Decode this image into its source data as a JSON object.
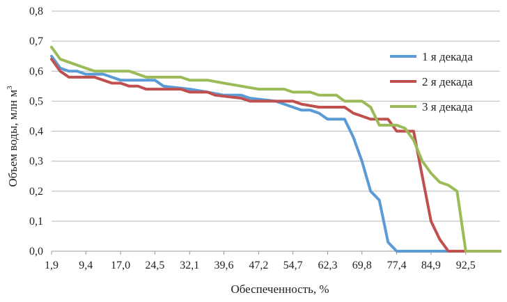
{
  "chart_data": {
    "type": "line",
    "title": "",
    "xlabel": "Обеспеченность, %",
    "ylabel": "Объем воды, млн м",
    "ylabel_superscript": "3",
    "ylim": [
      0,
      0.8
    ],
    "yticks": [
      "0,0",
      "0,1",
      "0,2",
      "0,3",
      "0,4",
      "0,5",
      "0,6",
      "0,7",
      "0,8"
    ],
    "xlim": [
      1.9,
      100
    ],
    "xticks": [
      {
        "value": 1.9,
        "label": "1,9"
      },
      {
        "value": 9.4,
        "label": "9,4"
      },
      {
        "value": 17.0,
        "label": "17,0"
      },
      {
        "value": 24.5,
        "label": "24,5"
      },
      {
        "value": 32.1,
        "label": "32,1"
      },
      {
        "value": 39.6,
        "label": "39,6"
      },
      {
        "value": 47.2,
        "label": "47,2"
      },
      {
        "value": 54.7,
        "label": "54,7"
      },
      {
        "value": 62.3,
        "label": "62,3"
      },
      {
        "value": 69.8,
        "label": "69,8"
      },
      {
        "value": 77.4,
        "label": "77,4"
      },
      {
        "value": 84.9,
        "label": "84,9"
      },
      {
        "value": 92.5,
        "label": "92,5"
      }
    ],
    "grid": true,
    "legend_position": "right",
    "series": [
      {
        "name": "1 я декада",
        "color": "#5b9bd5",
        "points": [
          [
            1.9,
            0.65
          ],
          [
            3.8,
            0.61
          ],
          [
            5.7,
            0.6
          ],
          [
            7.5,
            0.6
          ],
          [
            9.4,
            0.59
          ],
          [
            13.2,
            0.59
          ],
          [
            15.1,
            0.58
          ],
          [
            17.0,
            0.57
          ],
          [
            24.5,
            0.57
          ],
          [
            26.4,
            0.55
          ],
          [
            32.1,
            0.54
          ],
          [
            36.0,
            0.53
          ],
          [
            39.6,
            0.52
          ],
          [
            43.4,
            0.52
          ],
          [
            45.3,
            0.51
          ],
          [
            50.9,
            0.5
          ],
          [
            54.7,
            0.48
          ],
          [
            56.6,
            0.47
          ],
          [
            58.5,
            0.47
          ],
          [
            60.4,
            0.46
          ],
          [
            62.3,
            0.44
          ],
          [
            66.0,
            0.44
          ],
          [
            67.9,
            0.38
          ],
          [
            69.8,
            0.3
          ],
          [
            71.7,
            0.2
          ],
          [
            73.6,
            0.17
          ],
          [
            75.5,
            0.03
          ],
          [
            77.4,
            0.0
          ],
          [
            100,
            0.0
          ]
        ]
      },
      {
        "name": "2 я декада",
        "color": "#c0504d",
        "points": [
          [
            1.9,
            0.64
          ],
          [
            3.8,
            0.6
          ],
          [
            5.7,
            0.58
          ],
          [
            9.4,
            0.58
          ],
          [
            11.3,
            0.58
          ],
          [
            13.2,
            0.57
          ],
          [
            15.1,
            0.56
          ],
          [
            17.0,
            0.56
          ],
          [
            18.9,
            0.55
          ],
          [
            20.8,
            0.55
          ],
          [
            22.6,
            0.54
          ],
          [
            30.2,
            0.54
          ],
          [
            32.1,
            0.53
          ],
          [
            36.0,
            0.53
          ],
          [
            37.7,
            0.52
          ],
          [
            43.4,
            0.51
          ],
          [
            45.3,
            0.5
          ],
          [
            54.7,
            0.5
          ],
          [
            56.6,
            0.49
          ],
          [
            60.4,
            0.48
          ],
          [
            66.0,
            0.48
          ],
          [
            67.9,
            0.46
          ],
          [
            69.8,
            0.45
          ],
          [
            71.7,
            0.44
          ],
          [
            75.5,
            0.44
          ],
          [
            77.4,
            0.4
          ],
          [
            79.2,
            0.4
          ],
          [
            81.1,
            0.4
          ],
          [
            82.1,
            0.32
          ],
          [
            84.9,
            0.1
          ],
          [
            86.8,
            0.04
          ],
          [
            88.7,
            0.0
          ],
          [
            100,
            0.0
          ]
        ]
      },
      {
        "name": "3 я декада",
        "color": "#9bbb59",
        "points": [
          [
            1.9,
            0.68
          ],
          [
            3.8,
            0.64
          ],
          [
            5.7,
            0.63
          ],
          [
            7.5,
            0.62
          ],
          [
            9.4,
            0.61
          ],
          [
            11.3,
            0.6
          ],
          [
            18.9,
            0.6
          ],
          [
            22.6,
            0.58
          ],
          [
            30.2,
            0.58
          ],
          [
            32.1,
            0.57
          ],
          [
            36.0,
            0.57
          ],
          [
            39.6,
            0.56
          ],
          [
            43.4,
            0.55
          ],
          [
            47.2,
            0.54
          ],
          [
            52.8,
            0.54
          ],
          [
            54.7,
            0.53
          ],
          [
            58.5,
            0.53
          ],
          [
            60.4,
            0.52
          ],
          [
            64.2,
            0.52
          ],
          [
            66.0,
            0.5
          ],
          [
            69.8,
            0.5
          ],
          [
            71.7,
            0.48
          ],
          [
            73.6,
            0.42
          ],
          [
            77.4,
            0.42
          ],
          [
            79.2,
            0.41
          ],
          [
            81.1,
            0.37
          ],
          [
            83.0,
            0.3
          ],
          [
            84.9,
            0.26
          ],
          [
            86.8,
            0.23
          ],
          [
            88.7,
            0.22
          ],
          [
            90.6,
            0.2
          ],
          [
            92.5,
            0.0
          ],
          [
            100,
            0.0
          ]
        ]
      }
    ]
  }
}
